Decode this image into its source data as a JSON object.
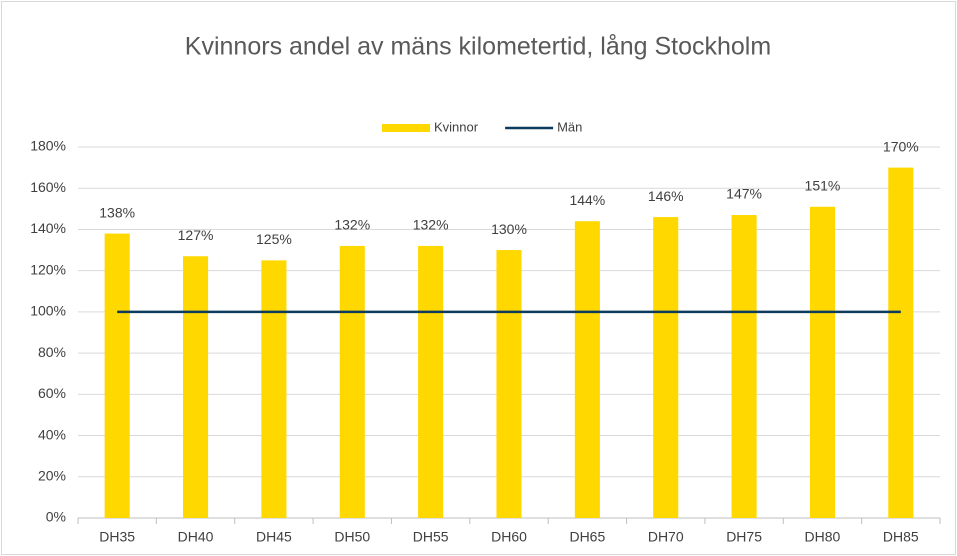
{
  "chart_data": {
    "type": "bar",
    "title": "Kvinnors andel av mäns kilometertid, lång Stockholm",
    "categories": [
      "DH35",
      "DH40",
      "DH45",
      "DH50",
      "DH55",
      "DH60",
      "DH65",
      "DH70",
      "DH75",
      "DH80",
      "DH85"
    ],
    "series": [
      {
        "name": "Kvinnor",
        "type": "bar",
        "color": "#ffd800",
        "values": [
          138,
          127,
          125,
          132,
          132,
          130,
          144,
          146,
          147,
          151,
          170
        ],
        "value_labels": [
          "138%",
          "127%",
          "125%",
          "132%",
          "132%",
          "130%",
          "144%",
          "146%",
          "147%",
          "151%",
          "170%"
        ]
      },
      {
        "name": "Män",
        "type": "line",
        "color": "#0d3b5e",
        "values": [
          100,
          100,
          100,
          100,
          100,
          100,
          100,
          100,
          100,
          100,
          100
        ]
      }
    ],
    "ylim": [
      0,
      180
    ],
    "yticks": [
      {
        "value": 0,
        "label": "0%"
      },
      {
        "value": 20,
        "label": "20%"
      },
      {
        "value": 40,
        "label": "40%"
      },
      {
        "value": 60,
        "label": "60%"
      },
      {
        "value": 80,
        "label": "80%"
      },
      {
        "value": 100,
        "label": "100%"
      },
      {
        "value": 120,
        "label": "120%"
      },
      {
        "value": 140,
        "label": "140%"
      },
      {
        "value": 160,
        "label": "160%"
      },
      {
        "value": 180,
        "label": "180%"
      }
    ],
    "grid": true,
    "legend": "top"
  }
}
